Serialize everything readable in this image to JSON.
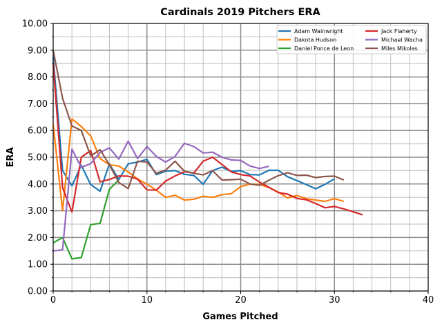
{
  "chart_data": {
    "type": "line",
    "title": "Cardinals 2019 Pitchers ERA",
    "xlabel": "Games Pitched",
    "ylabel": "ERA",
    "xlim": [
      0,
      40
    ],
    "ylim": [
      0,
      10
    ],
    "xticks": [
      "0",
      "10",
      "20",
      "30",
      "40"
    ],
    "yticks": [
      "0.00",
      "1.00",
      "2.00",
      "3.00",
      "4.00",
      "5.00",
      "6.00",
      "7.00",
      "8.00",
      "9.00",
      "10.00"
    ],
    "grid": true,
    "legend_position": "top-right",
    "series": [
      {
        "name": "Adam Wainwright",
        "color": "#1f77b4",
        "values": [
          8.75,
          4.5,
          3.93,
          4.7,
          3.98,
          3.73,
          4.75,
          4.17,
          4.75,
          4.82,
          4.92,
          4.35,
          4.48,
          4.5,
          4.36,
          4.32,
          3.99,
          4.5,
          4.63,
          4.47,
          4.5,
          4.35,
          4.34,
          4.51,
          4.51,
          4.27,
          4.13,
          3.98,
          3.82,
          3.99,
          4.19
        ]
      },
      {
        "name": "Dakota Hudson",
        "color": "#ff7f0e",
        "values": [
          6.23,
          3.0,
          6.43,
          6.15,
          5.8,
          4.95,
          4.72,
          4.67,
          4.45,
          4.19,
          3.99,
          3.77,
          3.5,
          3.58,
          3.4,
          3.43,
          3.54,
          3.5,
          3.6,
          3.64,
          3.9,
          4.0,
          3.98,
          3.87,
          3.7,
          3.48,
          3.57,
          3.45,
          3.4,
          3.35,
          3.45,
          3.35
        ]
      },
      {
        "name": "Daniel Ponce de Leon",
        "color": "#2ca02c",
        "values": [
          1.8,
          2.0,
          1.2,
          1.25,
          2.48,
          2.53,
          3.8,
          4.15
        ]
      },
      {
        "name": "Jack Flaherty",
        "color": "#d62728",
        "values": [
          8.5,
          3.86,
          2.95,
          5.0,
          5.25,
          4.08,
          4.17,
          4.3,
          4.29,
          4.18,
          3.78,
          3.77,
          4.11,
          4.3,
          4.46,
          4.41,
          4.85,
          5.0,
          4.73,
          4.45,
          4.35,
          4.3,
          4.07,
          3.88,
          3.68,
          3.62,
          3.46,
          3.41,
          3.27,
          3.11,
          3.16,
          3.07,
          2.96,
          2.85
        ]
      },
      {
        "name": "Michael Wacha",
        "color": "#9467bd",
        "values": [
          1.5,
          1.54,
          5.3,
          4.62,
          4.76,
          5.18,
          5.35,
          4.93,
          5.6,
          4.95,
          5.4,
          5.03,
          4.82,
          5.03,
          5.52,
          5.4,
          5.16,
          5.19,
          5.0,
          4.9,
          4.88,
          4.67,
          4.58,
          4.66
        ]
      },
      {
        "name": "Miles Mikolas",
        "color": "#8c564b",
        "values": [
          9.0,
          7.2,
          6.17,
          6.0,
          5.05,
          5.28,
          4.72,
          4.06,
          3.83,
          4.85,
          4.82,
          4.4,
          4.52,
          4.85,
          4.48,
          4.4,
          4.34,
          4.5,
          4.15,
          4.16,
          4.18,
          4.0,
          3.95,
          4.14,
          4.31,
          4.42,
          4.32,
          4.33,
          4.24,
          4.28,
          4.29,
          4.15
        ]
      }
    ]
  }
}
